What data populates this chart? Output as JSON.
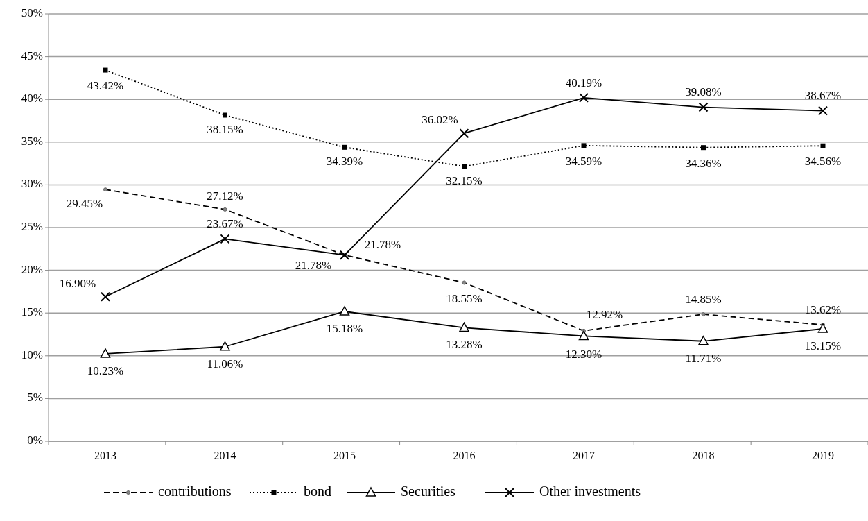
{
  "chart_data": {
    "type": "line",
    "categories": [
      "2013",
      "2014",
      "2015",
      "2016",
      "2017",
      "2018",
      "2019"
    ],
    "ylim": [
      0,
      50
    ],
    "yticks": [
      {
        "value": 0,
        "label": "0%"
      },
      {
        "value": 5,
        "label": "5%"
      },
      {
        "value": 10,
        "label": "10%"
      },
      {
        "value": 15,
        "label": "15%"
      },
      {
        "value": 20,
        "label": "20%"
      },
      {
        "value": 25,
        "label": "25%"
      },
      {
        "value": 30,
        "label": "30%"
      },
      {
        "value": 35,
        "label": "35%"
      },
      {
        "value": 40,
        "label": "40%"
      },
      {
        "value": 45,
        "label": "45%"
      },
      {
        "value": 50,
        "label": "50%"
      }
    ],
    "grid": "y",
    "legend": "bottom",
    "series": [
      {
        "name": "contributions",
        "color": "#000000",
        "line_style": "dashed",
        "marker": "circle",
        "values": [
          29.45,
          27.12,
          21.78,
          18.55,
          12.92,
          14.85,
          13.62
        ],
        "value_labels": [
          "29.45%",
          "27.12%",
          "21.78%",
          "18.55%",
          "12.92%",
          "14.85%",
          "13.62%"
        ]
      },
      {
        "name": "bond",
        "color": "#000000",
        "line_style": "dotted",
        "marker": "square",
        "values": [
          43.42,
          38.15,
          34.39,
          32.15,
          34.59,
          34.36,
          34.56
        ],
        "value_labels": [
          "43.42%",
          "38.15%",
          "34.39%",
          "32.15%",
          "34.59%",
          "34.36%",
          "34.56%"
        ]
      },
      {
        "name": "Securities",
        "color": "#000000",
        "line_style": "solid",
        "marker": "triangle",
        "values": [
          10.23,
          11.06,
          15.18,
          13.28,
          12.3,
          11.71,
          13.15
        ],
        "value_labels": [
          "10.23%",
          "11.06%",
          "15.18%",
          "13.28%",
          "12.30%",
          "11.71%",
          "13.15%"
        ]
      },
      {
        "name": "Other investments",
        "color": "#000000",
        "line_style": "solid",
        "marker": "cross",
        "values": [
          16.9,
          23.67,
          21.78,
          36.02,
          40.19,
          39.08,
          38.67
        ],
        "value_labels": [
          "16.90%",
          "23.67%",
          "21.78%",
          "36.02%",
          "40.19%",
          "39.08%",
          "38.67%"
        ]
      }
    ]
  }
}
